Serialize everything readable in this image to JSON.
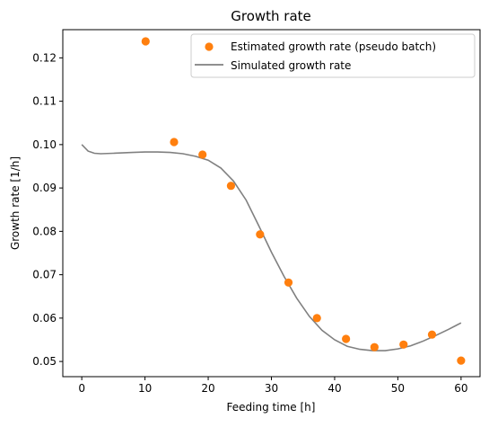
{
  "chart_data": {
    "type": "scatter",
    "title": "Growth rate",
    "xlabel": "Feeding time [h]",
    "ylabel": "Growth rate [1/h]",
    "xlim": [
      -3,
      63
    ],
    "ylim": [
      0.0465,
      0.1265
    ],
    "xticks": [
      0,
      10,
      20,
      30,
      40,
      50,
      60
    ],
    "yticks": [
      0.05,
      0.06,
      0.07,
      0.08,
      0.09,
      0.1,
      0.11,
      0.12
    ],
    "xtick_labels": [
      "0",
      "10",
      "20",
      "30",
      "40",
      "50",
      "60"
    ],
    "ytick_labels": [
      "0.05",
      "0.06",
      "0.07",
      "0.08",
      "0.09",
      "0.10",
      "0.11",
      "0.12"
    ],
    "grid": false,
    "legend_position": "top-right",
    "series": [
      {
        "name": "Estimated growth rate (pseudo batch)",
        "kind": "scatter",
        "color": "#ff7f0e",
        "x": [
          10.1,
          14.6,
          19.1,
          23.6,
          28.2,
          32.7,
          37.2,
          41.8,
          46.3,
          50.9,
          55.4,
          60.0
        ],
        "y": [
          0.1238,
          0.1006,
          0.0977,
          0.0905,
          0.0793,
          0.0682,
          0.06,
          0.0552,
          0.0533,
          0.0539,
          0.0562,
          0.0502
        ]
      },
      {
        "name": "Simulated growth rate",
        "kind": "line",
        "color": "#808080",
        "x": [
          0,
          1,
          2,
          3,
          5,
          8,
          10,
          12,
          14,
          16,
          18,
          20,
          22,
          24,
          26,
          28,
          30,
          32,
          34,
          36,
          38,
          40,
          42,
          44,
          46,
          48,
          50,
          52,
          54,
          56,
          58,
          60
        ],
        "y": [
          0.1,
          0.0985,
          0.098,
          0.0979,
          0.098,
          0.0982,
          0.0983,
          0.0983,
          0.0982,
          0.0979,
          0.0973,
          0.0964,
          0.0946,
          0.0916,
          0.0872,
          0.0813,
          0.0752,
          0.0696,
          0.0646,
          0.0604,
          0.0572,
          0.055,
          0.0535,
          0.0528,
          0.0525,
          0.0525,
          0.0529,
          0.0536,
          0.0547,
          0.056,
          0.0574,
          0.0589
        ]
      }
    ]
  }
}
